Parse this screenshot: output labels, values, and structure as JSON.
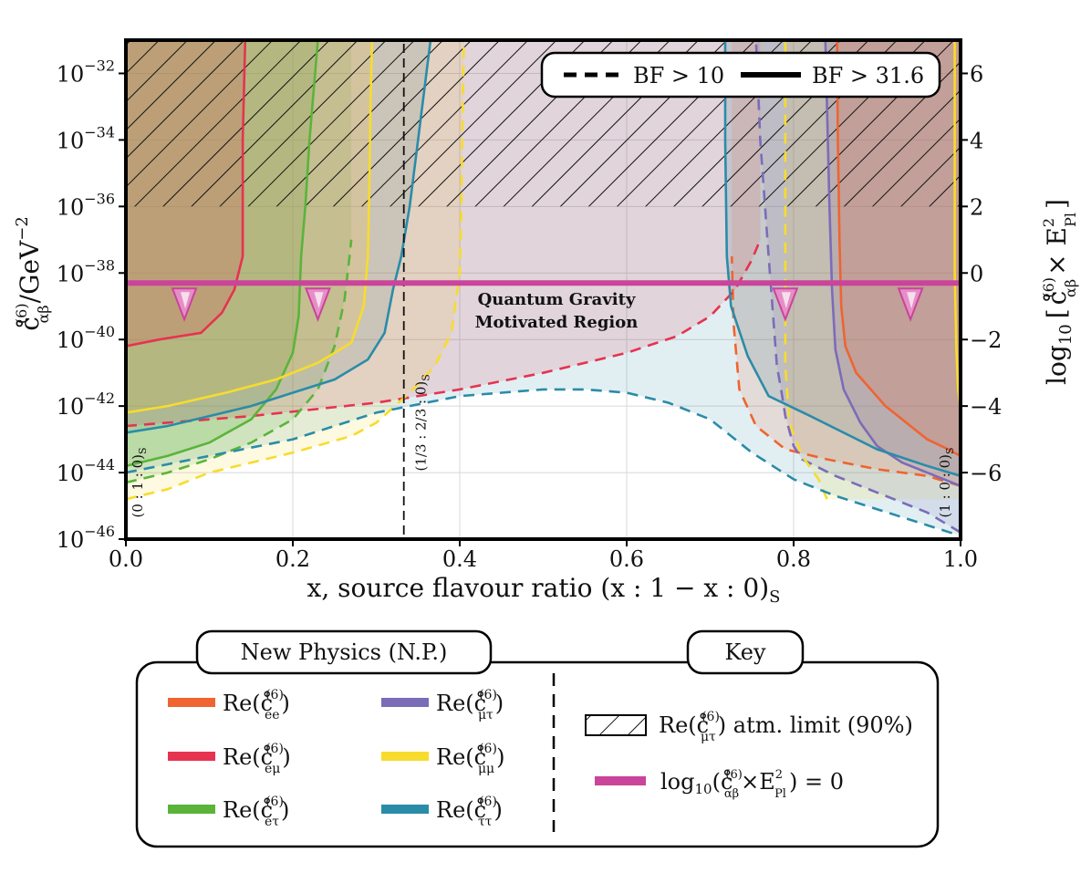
{
  "chart_data": {
    "type": "area",
    "title": "",
    "xlabel": "x, source flavour ratio (x : 1 − x : 0)",
    "xlabel_subscript": "S",
    "ylabel": "c̊",
    "ylabel_super": "(6)",
    "ylabel_sub": "αβ",
    "ylabel_unit": "/GeV",
    "ylabel_unit_exp": "−2",
    "y2label_prefix": "log",
    "y2label_base": "10",
    "y2label_bracket_open": "[",
    "y2label_bracket_close": "]",
    "y2label_c": "c̊",
    "y2label_c_super": "(6)",
    "y2label_c_sub": "αβ",
    "y2label_times": "× E",
    "y2label_e_super": "2",
    "y2label_e_sub": "Pl",
    "xlim": [
      0,
      1
    ],
    "ylim_log10": [
      -46,
      -31
    ],
    "y2lim": [
      -8,
      7
    ],
    "x_ticks": [
      {
        "value": 0.0,
        "label": "0.0"
      },
      {
        "value": 0.2,
        "label": "0.2"
      },
      {
        "value": 0.4,
        "label": "0.4"
      },
      {
        "value": 0.6,
        "label": "0.6"
      },
      {
        "value": 0.8,
        "label": "0.8"
      },
      {
        "value": 1.0,
        "label": "1.0"
      }
    ],
    "y_ticks": [
      {
        "exp": -32,
        "base": "10",
        "sup": "−32"
      },
      {
        "exp": -34,
        "base": "10",
        "sup": "−34"
      },
      {
        "exp": -36,
        "base": "10",
        "sup": "−36"
      },
      {
        "exp": -38,
        "base": "10",
        "sup": "−38"
      },
      {
        "exp": -40,
        "base": "10",
        "sup": "−40"
      },
      {
        "exp": -42,
        "base": "10",
        "sup": "−42"
      },
      {
        "exp": -44,
        "base": "10",
        "sup": "−44"
      },
      {
        "exp": -46,
        "base": "10",
        "sup": "−46"
      }
    ],
    "y2_ticks": [
      {
        "value": 6,
        "label": "6"
      },
      {
        "value": 4,
        "label": "4"
      },
      {
        "value": 2,
        "label": "2"
      },
      {
        "value": 0,
        "label": "0"
      },
      {
        "value": -2,
        "label": "−2"
      },
      {
        "value": -4,
        "label": "−4"
      },
      {
        "value": -6,
        "label": "−6"
      }
    ],
    "grid": true,
    "hatch_region": {
      "y_from": -36,
      "y_to": -31
    },
    "qg_line": {
      "log10_value": -38.3,
      "color": "#c9449a"
    },
    "qg_label_line1": "Quantum Gravity",
    "qg_label_line2": "Motivated Region",
    "arrow_x": [
      0.07,
      0.23,
      0.79,
      0.94
    ],
    "vlines": [
      {
        "x": 0.0,
        "label": "(0 : 1 : 0)",
        "sub": "S",
        "label_y": -44.3
      },
      {
        "x": 0.333,
        "label": "(1/3 : 2/3 : 0)",
        "sub": "S",
        "label_y": -42.5
      },
      {
        "x": 1.0,
        "label": "(1 : 0 : 0)",
        "sub": "S",
        "label_y": -44.3
      }
    ],
    "series": [
      {
        "name": "ee",
        "color": "#ef6430",
        "solid": [
          [
            1.0,
            -43.5
          ],
          [
            0.985,
            -43.3
          ],
          [
            0.96,
            -43.0
          ],
          [
            0.94,
            -42.6
          ],
          [
            0.91,
            -42.0
          ],
          [
            0.875,
            -41.0
          ],
          [
            0.862,
            -40.2
          ],
          [
            0.857,
            -39.0
          ],
          [
            0.855,
            -37.0
          ],
          [
            0.853,
            -34.0
          ],
          [
            0.852,
            -31.0
          ]
        ],
        "dashed": [
          [
            1.0,
            -44.4
          ],
          [
            0.96,
            -44.1
          ],
          [
            0.9,
            -43.9
          ],
          [
            0.84,
            -43.6
          ],
          [
            0.79,
            -43.3
          ],
          [
            0.755,
            -42.6
          ],
          [
            0.735,
            -41.5
          ],
          [
            0.728,
            -39.5
          ],
          [
            0.726,
            -37.5
          ]
        ]
      },
      {
        "name": "eμ",
        "color": "#e63350",
        "solid": [
          [
            0.0,
            -40.2
          ],
          [
            0.04,
            -40.0
          ],
          [
            0.09,
            -39.8
          ],
          [
            0.115,
            -39.2
          ],
          [
            0.13,
            -38.5
          ],
          [
            0.14,
            -37.5
          ],
          [
            0.14,
            -36.0
          ],
          [
            0.14,
            -34.0
          ],
          [
            0.143,
            -31.0
          ]
        ],
        "dashed": [
          [
            0.0,
            -42.6
          ],
          [
            0.15,
            -42.3
          ],
          [
            0.3,
            -41.9
          ],
          [
            0.4,
            -41.5
          ],
          [
            0.5,
            -41.0
          ],
          [
            0.6,
            -40.4
          ],
          [
            0.66,
            -39.9
          ],
          [
            0.7,
            -39.3
          ],
          [
            0.73,
            -38.5
          ],
          [
            0.75,
            -37.6
          ],
          [
            0.76,
            -37.0
          ]
        ]
      },
      {
        "name": "eτ",
        "color": "#5ab43a",
        "solid": [
          [
            0.0,
            -43.8
          ],
          [
            0.05,
            -43.5
          ],
          [
            0.1,
            -43.1
          ],
          [
            0.15,
            -42.4
          ],
          [
            0.18,
            -41.5
          ],
          [
            0.2,
            -40.4
          ],
          [
            0.207,
            -39.3
          ],
          [
            0.21,
            -37.5
          ],
          [
            0.215,
            -36.0
          ],
          [
            0.22,
            -34.0
          ],
          [
            0.225,
            -32.5
          ],
          [
            0.23,
            -31.0
          ]
        ],
        "dashed": [
          [
            0.0,
            -44.3
          ],
          [
            0.05,
            -44.0
          ],
          [
            0.1,
            -43.6
          ],
          [
            0.15,
            -43.1
          ],
          [
            0.2,
            -42.4
          ],
          [
            0.23,
            -41.5
          ],
          [
            0.25,
            -40.2
          ],
          [
            0.262,
            -38.8
          ],
          [
            0.268,
            -37.5
          ],
          [
            0.27,
            -37.0
          ]
        ]
      },
      {
        "name": "μτ",
        "color": "#7b6cb8",
        "solid": [
          [
            1.0,
            -44.4
          ],
          [
            0.97,
            -44.1
          ],
          [
            0.93,
            -43.7
          ],
          [
            0.9,
            -43.2
          ],
          [
            0.88,
            -42.5
          ],
          [
            0.86,
            -41.5
          ],
          [
            0.85,
            -40.3
          ],
          [
            0.846,
            -38.5
          ],
          [
            0.843,
            -36.0
          ],
          [
            0.84,
            -33.0
          ],
          [
            0.838,
            -31.0
          ]
        ],
        "dashed": [
          [
            1.0,
            -45.8
          ],
          [
            0.96,
            -45.2
          ],
          [
            0.9,
            -44.6
          ],
          [
            0.85,
            -44.1
          ],
          [
            0.81,
            -43.6
          ],
          [
            0.8,
            -43.2
          ],
          [
            0.79,
            -42.3
          ],
          [
            0.785,
            -41.5
          ],
          [
            0.78,
            -40.8
          ],
          [
            0.77,
            -37.5
          ],
          [
            0.76,
            -34.0
          ],
          [
            0.755,
            -31.0
          ]
        ]
      },
      {
        "name": "μμ",
        "color": "#f7dc2e",
        "solid": [
          [
            0.0,
            -42.2
          ],
          [
            0.05,
            -42.0
          ],
          [
            0.12,
            -41.6
          ],
          [
            0.18,
            -41.2
          ],
          [
            0.23,
            -40.7
          ],
          [
            0.27,
            -40.1
          ],
          [
            0.285,
            -39.0
          ],
          [
            0.29,
            -37.5
          ],
          [
            0.292,
            -35.0
          ],
          [
            0.293,
            -33.0
          ],
          [
            0.295,
            -31.0
          ]
        ],
        "solid2": [
          [
            1.0,
            -42.1
          ],
          [
            0.997,
            -41.5
          ],
          [
            0.995,
            -40.3
          ],
          [
            0.993,
            -38.0
          ],
          [
            0.993,
            -35.0
          ],
          [
            0.993,
            -31.0
          ]
        ],
        "dashed": [
          [
            0.0,
            -44.8
          ],
          [
            0.05,
            -44.5
          ],
          [
            0.1,
            -44.0
          ],
          [
            0.2,
            -43.4
          ],
          [
            0.27,
            -42.9
          ],
          [
            0.3,
            -42.5
          ],
          [
            0.34,
            -41.6
          ],
          [
            0.37,
            -40.8
          ],
          [
            0.39,
            -39.8
          ],
          [
            0.4,
            -38.0
          ],
          [
            0.402,
            -36.0
          ],
          [
            0.403,
            -34.0
          ],
          [
            0.405,
            -31.0
          ]
        ],
        "dashed2": [
          [
            0.84,
            -44.8
          ],
          [
            0.83,
            -44.2
          ],
          [
            0.81,
            -43.5
          ],
          [
            0.795,
            -42.5
          ],
          [
            0.79,
            -40.8
          ],
          [
            0.79,
            -37.5
          ],
          [
            0.79,
            -34.0
          ],
          [
            0.79,
            -31.0
          ]
        ]
      },
      {
        "name": "ττ",
        "color": "#2a8ca8",
        "solid": [
          [
            0.0,
            -42.8
          ],
          [
            0.05,
            -42.6
          ],
          [
            0.1,
            -42.3
          ],
          [
            0.15,
            -42.0
          ],
          [
            0.2,
            -41.6
          ],
          [
            0.25,
            -41.2
          ],
          [
            0.29,
            -40.6
          ],
          [
            0.31,
            -39.8
          ],
          [
            0.32,
            -38.5
          ],
          [
            0.33,
            -37.5
          ],
          [
            0.34,
            -36.0
          ],
          [
            0.35,
            -34.0
          ],
          [
            0.36,
            -32.0
          ],
          [
            0.365,
            -31.0
          ]
        ],
        "solid2": [
          [
            1.0,
            -44.1
          ],
          [
            0.96,
            -43.8
          ],
          [
            0.9,
            -43.3
          ],
          [
            0.82,
            -42.3
          ],
          [
            0.77,
            -41.7
          ],
          [
            0.745,
            -40.5
          ],
          [
            0.725,
            -39.0
          ],
          [
            0.72,
            -37.5
          ],
          [
            0.718,
            -34.0
          ],
          [
            0.718,
            -31.0
          ]
        ],
        "dashed": [
          [
            0.0,
            -44.0
          ],
          [
            0.1,
            -43.5
          ],
          [
            0.2,
            -43.0
          ],
          [
            0.3,
            -42.2
          ],
          [
            0.4,
            -41.7
          ],
          [
            0.45,
            -41.6
          ],
          [
            0.5,
            -41.5
          ],
          [
            0.55,
            -41.5
          ],
          [
            0.6,
            -41.6
          ],
          [
            0.65,
            -41.9
          ],
          [
            0.7,
            -42.4
          ],
          [
            0.75,
            -43.4
          ],
          [
            0.8,
            -44.2
          ],
          [
            0.85,
            -44.7
          ],
          [
            0.9,
            -45.1
          ],
          [
            0.95,
            -45.5
          ],
          [
            1.0,
            -45.9
          ]
        ]
      }
    ]
  },
  "top_legend": {
    "dashed_label": "BF > 10",
    "solid_label": "BF > 31.6"
  },
  "np_panel": {
    "title": "New Physics (N.P.)",
    "items": [
      {
        "text": "Re(",
        "c": "c̊",
        "sup": "(6)",
        "sub": "ee",
        "close": ")",
        "color": "#ef6430"
      },
      {
        "text": "Re(",
        "c": "c̊",
        "sup": "(6)",
        "sub": "eμ",
        "close": ")",
        "color": "#e63350"
      },
      {
        "text": "Re(",
        "c": "c̊",
        "sup": "(6)",
        "sub": "eτ",
        "close": ")",
        "color": "#5ab43a"
      },
      {
        "text": "Re(",
        "c": "c̊",
        "sup": "(6)",
        "sub": "μτ",
        "close": ")",
        "color": "#7b6cb8"
      },
      {
        "text": "Re(",
        "c": "c̊",
        "sup": "(6)",
        "sub": "μμ",
        "close": ")",
        "color": "#f7dc2e"
      },
      {
        "text": "Re(",
        "c": "c̊",
        "sup": "(6)",
        "sub": "ττ",
        "close": ")",
        "color": "#2a8ca8"
      }
    ]
  },
  "key_panel": {
    "title": "Key",
    "hatch_text_pre": "Re(",
    "hatch_c": "c̊",
    "hatch_sup": "(6)",
    "hatch_sub": "μτ",
    "hatch_text_post": ") atm. limit (90%)",
    "qg_pre": "log",
    "qg_base": "10",
    "qg_open": "(",
    "qg_c": "c̊",
    "qg_c_sup": "(6)",
    "qg_c_sub": "αβ",
    "qg_times": "×E",
    "qg_e_sup": "2",
    "qg_e_sub": "Pl",
    "qg_post": ") = 0"
  }
}
